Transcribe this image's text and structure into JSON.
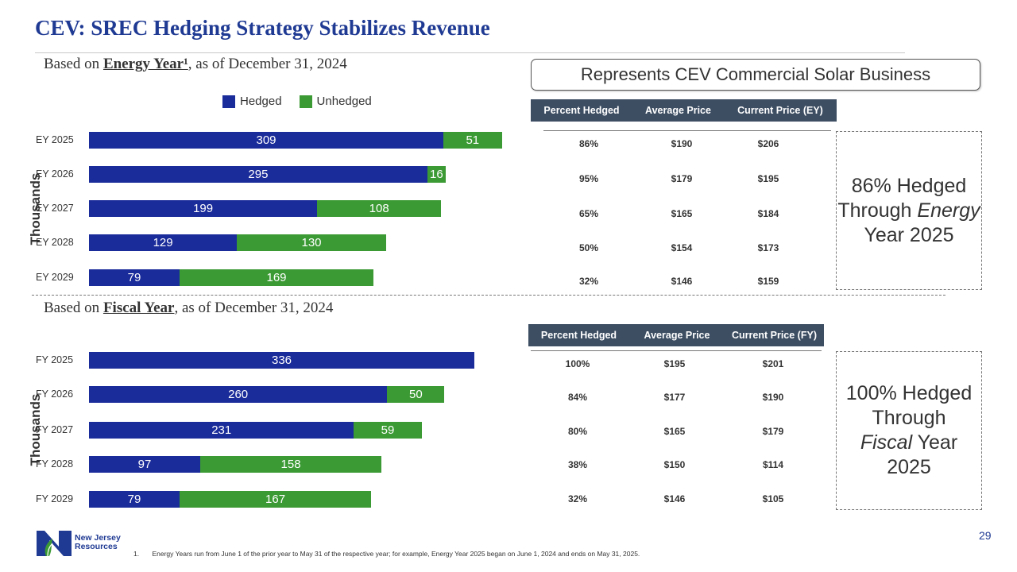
{
  "title": "CEV: SREC Hedging Strategy Stabilizes Revenue",
  "callout": "Represents CEV Commercial Solar Business",
  "legend": {
    "hedged": "Hedged",
    "unhedged": "Unhedged"
  },
  "colors": {
    "hedged": "#1a2b9a",
    "unhedged": "#3c9a34",
    "title": "#1f3a93",
    "table_header": "#3d4e63"
  },
  "axis_unit_label": "Thousands",
  "energy_year": {
    "subtitle_prefix": "Based on ",
    "subtitle_emph": "Energy Year¹",
    "subtitle_suffix": ", as of December 31, 2024",
    "table_headers": [
      "Percent Hedged",
      "Average Price",
      "Current Price (EY)"
    ],
    "table_rows": [
      [
        "86%",
        "$190",
        "$206"
      ],
      [
        "95%",
        "$179",
        "$195"
      ],
      [
        "65%",
        "$165",
        "$184"
      ],
      [
        "50%",
        "$154",
        "$173"
      ],
      [
        "32%",
        "$146",
        "$159"
      ]
    ],
    "summary_line1": "86% Hedged Through",
    "summary_italic": "Energy",
    "summary_line2": " Year 2025"
  },
  "fiscal_year": {
    "subtitle_prefix": "Based on ",
    "subtitle_emph": "Fiscal Year",
    "subtitle_suffix": ", as of December 31, 2024",
    "table_headers": [
      "Percent Hedged",
      "Average Price",
      "Current Price (FY)"
    ],
    "table_rows": [
      [
        "100%",
        "$195",
        "$201"
      ],
      [
        "84%",
        "$177",
        "$190"
      ],
      [
        "80%",
        "$165",
        "$179"
      ],
      [
        "38%",
        "$150",
        "$114"
      ],
      [
        "32%",
        "$146",
        "$105"
      ]
    ],
    "summary_line1": "100% Hedged Through",
    "summary_italic": "Fiscal",
    "summary_line2": " Year 2025"
  },
  "chart_data": [
    {
      "type": "bar",
      "orientation": "horizontal",
      "stacked": true,
      "categories": [
        "EY 2025",
        "EY 2026",
        "EY 2027",
        "EY 2028",
        "EY 2029"
      ],
      "series": [
        {
          "name": "Hedged",
          "values": [
            309,
            295,
            199,
            129,
            79
          ]
        },
        {
          "name": "Unhedged",
          "values": [
            51,
            16,
            108,
            130,
            169
          ]
        }
      ],
      "ylabel": "Thousands",
      "legend": "top",
      "grid": false
    },
    {
      "type": "bar",
      "orientation": "horizontal",
      "stacked": true,
      "categories": [
        "FY 2025",
        "FY 2026",
        "FY 2027",
        "FY 2028",
        "FY 2029"
      ],
      "series": [
        {
          "name": "Hedged",
          "values": [
            336,
            260,
            231,
            97,
            79
          ]
        },
        {
          "name": "Unhedged",
          "values": [
            0,
            50,
            59,
            158,
            167
          ]
        }
      ],
      "ylabel": "Thousands",
      "legend": "none",
      "grid": false
    }
  ],
  "logo": {
    "line1": "New Jersey",
    "line2": "Resources"
  },
  "footnote_number": "1.",
  "footnote": "Energy Years run from June 1 of the prior year to May 31 of the respective year; for example, Energy Year 2025 began on June 1, 2024 and ends on May 31, 2025.",
  "page_number": "29"
}
